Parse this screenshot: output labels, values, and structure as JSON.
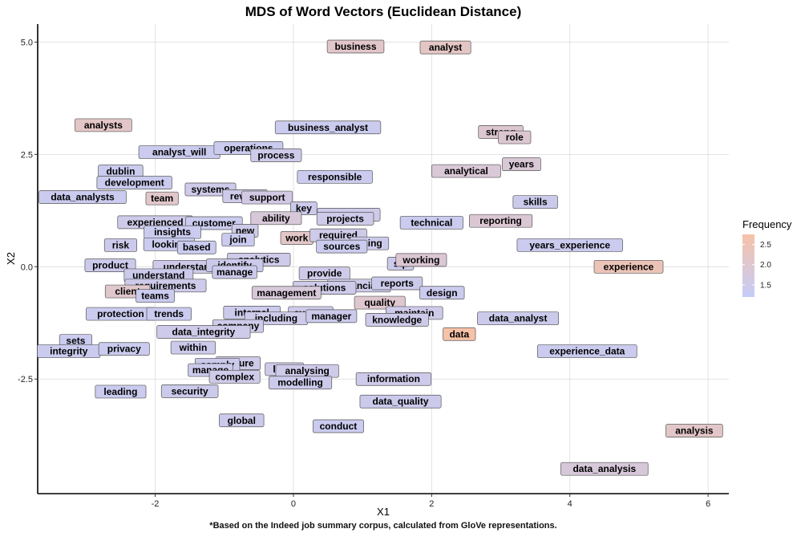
{
  "chart_data": {
    "type": "scatter",
    "title": "MDS of Word Vectors (Euclidean Distance)",
    "caption": "*Based on the Indeed job summary corpus, calculated from GloVe representations.",
    "xlabel": "X1",
    "ylabel": "X2",
    "xlim": [
      -3.7,
      6.3
    ],
    "ylim": [
      -5.05,
      5.4
    ],
    "x_ticks": [
      -2,
      0,
      2,
      4,
      6
    ],
    "y_ticks": [
      5.0,
      2.5,
      0.0,
      -2.5
    ],
    "x_tick_labels": [
      "-2",
      "0",
      "2",
      "4",
      "6"
    ],
    "y_tick_labels": [
      "5.0",
      "2.5",
      "0.0",
      "-2.5"
    ],
    "grid": true,
    "legend": {
      "title": "Frequency",
      "position": "right",
      "ticks": [
        1.5,
        2.0,
        2.5
      ],
      "tick_labels": [
        "1.5",
        "2.0",
        "2.5"
      ],
      "range": [
        1.2,
        2.75
      ],
      "colors": [
        "#c4ccf8",
        "#f6c2a8"
      ]
    },
    "points": [
      {
        "label": "business",
        "x": 0.9,
        "y": 4.9,
        "freq": 2.1
      },
      {
        "label": "analyst",
        "x": 2.2,
        "y": 4.88,
        "freq": 2.2
      },
      {
        "label": "analysts",
        "x": -2.75,
        "y": 3.15,
        "freq": 2.15
      },
      {
        "label": "business_analyst",
        "x": 0.5,
        "y": 3.1,
        "freq": 1.4
      },
      {
        "label": "strong",
        "x": 3.0,
        "y": 3.0,
        "freq": 1.95
      },
      {
        "label": "role",
        "x": 3.2,
        "y": 2.88,
        "freq": 1.95
      },
      {
        "label": "analyst_will",
        "x": -1.65,
        "y": 2.55,
        "freq": 1.4
      },
      {
        "label": "operations",
        "x": -0.65,
        "y": 2.64,
        "freq": 1.4
      },
      {
        "label": "process",
        "x": -0.25,
        "y": 2.48,
        "freq": 1.5
      },
      {
        "label": "years",
        "x": 3.3,
        "y": 2.28,
        "freq": 1.85
      },
      {
        "label": "dublin",
        "x": -2.5,
        "y": 2.12,
        "freq": 1.4
      },
      {
        "label": "analytical",
        "x": 2.5,
        "y": 2.13,
        "freq": 1.85
      },
      {
        "label": "responsible",
        "x": 0.6,
        "y": 2.0,
        "freq": 1.4
      },
      {
        "label": "development",
        "x": -2.3,
        "y": 1.87,
        "freq": 1.4
      },
      {
        "label": "systems",
        "x": -1.2,
        "y": 1.72,
        "freq": 1.5
      },
      {
        "label": "data_analysts",
        "x": -3.05,
        "y": 1.55,
        "freq": 1.4
      },
      {
        "label": "team",
        "x": -1.9,
        "y": 1.52,
        "freq": 2.1
      },
      {
        "label": "review",
        "x": -0.7,
        "y": 1.57,
        "freq": 1.5
      },
      {
        "label": "support",
        "x": -0.38,
        "y": 1.54,
        "freq": 1.6
      },
      {
        "label": "key",
        "x": 0.15,
        "y": 1.3,
        "freq": 1.45
      },
      {
        "label": "skills",
        "x": 3.5,
        "y": 1.44,
        "freq": 1.45
      },
      {
        "label": "processes",
        "x": 0.8,
        "y": 1.16,
        "freq": 1.5
      },
      {
        "label": "projects",
        "x": 0.75,
        "y": 1.07,
        "freq": 1.5
      },
      {
        "label": "ability",
        "x": -0.25,
        "y": 1.08,
        "freq": 1.8
      },
      {
        "label": "experienced",
        "x": -2.0,
        "y": 0.99,
        "freq": 1.5
      },
      {
        "label": "customer",
        "x": -1.15,
        "y": 0.97,
        "freq": 1.4
      },
      {
        "label": "technical",
        "x": 2.0,
        "y": 0.98,
        "freq": 1.4
      },
      {
        "label": "reporting",
        "x": 3.0,
        "y": 1.02,
        "freq": 1.9
      },
      {
        "label": "insights",
        "x": -1.75,
        "y": 0.77,
        "freq": 1.4
      },
      {
        "label": "new",
        "x": -0.7,
        "y": 0.8,
        "freq": 1.5
      },
      {
        "label": "work",
        "x": 0.05,
        "y": 0.64,
        "freq": 2.15
      },
      {
        "label": "required",
        "x": 0.65,
        "y": 0.7,
        "freq": 1.5
      },
      {
        "label": "join",
        "x": -0.8,
        "y": 0.6,
        "freq": 1.4
      },
      {
        "label": "looking",
        "x": -1.8,
        "y": 0.5,
        "freq": 1.4
      },
      {
        "label": "risk",
        "x": -2.5,
        "y": 0.48,
        "freq": 1.45
      },
      {
        "label": "based",
        "x": -1.4,
        "y": 0.43,
        "freq": 1.4
      },
      {
        "label": "using",
        "x": 1.1,
        "y": 0.52,
        "freq": 1.45
      },
      {
        "label": "sources",
        "x": 0.7,
        "y": 0.45,
        "freq": 1.4
      },
      {
        "label": "years_experience",
        "x": 4.0,
        "y": 0.48,
        "freq": 1.4
      },
      {
        "label": "analytics",
        "x": -0.5,
        "y": 0.16,
        "freq": 1.5
      },
      {
        "label": "sql",
        "x": 1.55,
        "y": 0.07,
        "freq": 1.45
      },
      {
        "label": "working",
        "x": 1.85,
        "y": 0.15,
        "freq": 1.9
      },
      {
        "label": "product",
        "x": -2.65,
        "y": 0.03,
        "freq": 1.45
      },
      {
        "label": "understanding",
        "x": -1.4,
        "y": 0.0,
        "freq": 1.5
      },
      {
        "label": "identify",
        "x": -0.85,
        "y": 0.03,
        "freq": 1.45
      },
      {
        "label": "experience",
        "x": 4.85,
        "y": 0.0,
        "freq": 2.45
      },
      {
        "label": "understand",
        "x": -1.95,
        "y": -0.19,
        "freq": 1.45
      },
      {
        "label": "manage",
        "x": -0.85,
        "y": -0.12,
        "freq": 1.45
      },
      {
        "label": "provide",
        "x": 0.45,
        "y": -0.15,
        "freq": 1.5
      },
      {
        "label": "requirements",
        "x": -1.85,
        "y": -0.42,
        "freq": 1.5
      },
      {
        "label": "financial",
        "x": 0.95,
        "y": -0.42,
        "freq": 1.5
      },
      {
        "label": "reports",
        "x": 1.5,
        "y": -0.37,
        "freq": 1.45
      },
      {
        "label": "solutions",
        "x": 0.45,
        "y": -0.47,
        "freq": 1.5
      },
      {
        "label": "client",
        "x": -2.4,
        "y": -0.55,
        "freq": 2.05
      },
      {
        "label": "management",
        "x": -0.1,
        "y": -0.58,
        "freq": 1.8
      },
      {
        "label": "design",
        "x": 2.15,
        "y": -0.58,
        "freq": 1.4
      },
      {
        "label": "teams",
        "x": -2.0,
        "y": -0.65,
        "freq": 1.4
      },
      {
        "label": "quality",
        "x": 1.25,
        "y": -0.8,
        "freq": 2.0
      },
      {
        "label": "protection",
        "x": -2.5,
        "y": -1.05,
        "freq": 1.4
      },
      {
        "label": "trends",
        "x": -1.8,
        "y": -1.05,
        "freq": 1.4
      },
      {
        "label": "internal",
        "x": -0.6,
        "y": -1.02,
        "freq": 1.45
      },
      {
        "label": "system",
        "x": 0.25,
        "y": -1.03,
        "freq": 1.5
      },
      {
        "label": "maintain",
        "x": 1.75,
        "y": -1.03,
        "freq": 1.5
      },
      {
        "label": "including",
        "x": -0.25,
        "y": -1.15,
        "freq": 1.5
      },
      {
        "label": "manager",
        "x": 0.55,
        "y": -1.1,
        "freq": 1.45
      },
      {
        "label": "knowledge",
        "x": 1.5,
        "y": -1.18,
        "freq": 1.5
      },
      {
        "label": "data_analyst",
        "x": 3.25,
        "y": -1.15,
        "freq": 1.45
      },
      {
        "label": "company",
        "x": -0.8,
        "y": -1.32,
        "freq": 1.5
      },
      {
        "label": "data_integrity",
        "x": -1.3,
        "y": -1.45,
        "freq": 1.5
      },
      {
        "label": "data",
        "x": 2.4,
        "y": -1.5,
        "freq": 2.75
      },
      {
        "label": "sets",
        "x": -3.15,
        "y": -1.65,
        "freq": 1.4
      },
      {
        "label": "within",
        "x": -1.45,
        "y": -1.8,
        "freq": 1.45
      },
      {
        "label": "integrity",
        "x": -3.25,
        "y": -1.88,
        "freq": 1.4
      },
      {
        "label": "privacy",
        "x": -2.45,
        "y": -1.83,
        "freq": 1.4
      },
      {
        "label": "experience_data",
        "x": 4.25,
        "y": -1.88,
        "freq": 1.4
      },
      {
        "label": "ensure",
        "x": -0.8,
        "y": -2.15,
        "freq": 1.5
      },
      {
        "label": "comply",
        "x": -1.1,
        "y": -2.18,
        "freq": 1.45
      },
      {
        "label": "manage",
        "x": -1.2,
        "y": -2.3,
        "freq": 1.45
      },
      {
        "label": "large",
        "x": -0.13,
        "y": -2.28,
        "freq": 1.5
      },
      {
        "label": "analysing",
        "x": 0.2,
        "y": -2.32,
        "freq": 1.5
      },
      {
        "label": "complex",
        "x": -0.85,
        "y": -2.45,
        "freq": 1.5
      },
      {
        "label": "information",
        "x": 1.45,
        "y": -2.5,
        "freq": 1.5
      },
      {
        "label": "modelling",
        "x": 0.1,
        "y": -2.58,
        "freq": 1.45
      },
      {
        "label": "leading",
        "x": -2.5,
        "y": -2.78,
        "freq": 1.4
      },
      {
        "label": "security",
        "x": -1.5,
        "y": -2.77,
        "freq": 1.45
      },
      {
        "label": "data_quality",
        "x": 1.55,
        "y": -3.0,
        "freq": 1.45
      },
      {
        "label": "global",
        "x": -0.75,
        "y": -3.42,
        "freq": 1.45
      },
      {
        "label": "conduct",
        "x": 0.65,
        "y": -3.55,
        "freq": 1.4
      },
      {
        "label": "analysis",
        "x": 5.8,
        "y": -3.65,
        "freq": 2.15
      },
      {
        "label": "data_analysis",
        "x": 4.5,
        "y": -4.5,
        "freq": 1.8
      }
    ]
  }
}
